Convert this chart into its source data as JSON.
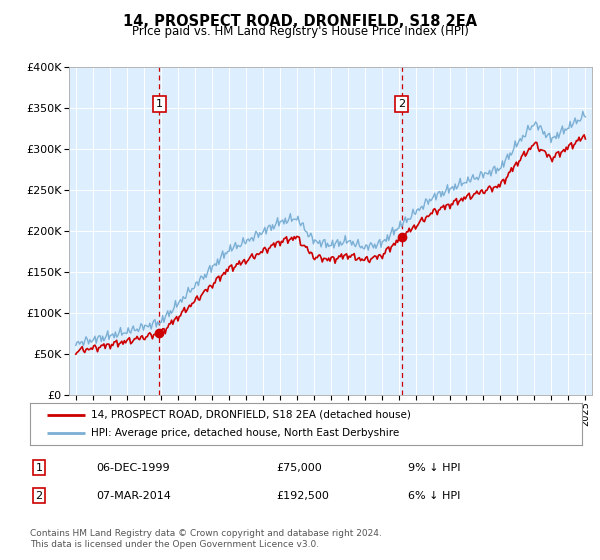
{
  "title": "14, PROSPECT ROAD, DRONFIELD, S18 2EA",
  "subtitle": "Price paid vs. HM Land Registry's House Price Index (HPI)",
  "legend_line1": "14, PROSPECT ROAD, DRONFIELD, S18 2EA (detached house)",
  "legend_line2": "HPI: Average price, detached house, North East Derbyshire",
  "footer": "Contains HM Land Registry data © Crown copyright and database right 2024.\nThis data is licensed under the Open Government Licence v3.0.",
  "sale1_date": "06-DEC-1999",
  "sale1_price": "£75,000",
  "sale1_hpi": "9% ↓ HPI",
  "sale2_date": "07-MAR-2014",
  "sale2_price": "£192,500",
  "sale2_hpi": "6% ↓ HPI",
  "sale1_year": 1999.92,
  "sale1_value": 75000,
  "sale2_year": 2014.18,
  "sale2_value": 192500,
  "hpi_color": "#7bafd4",
  "price_color": "#cc0000",
  "sale_marker_color": "#cc0000",
  "dashed_line_color": "#cc0000",
  "plot_bg_color": "#ddeeff",
  "ylim": [
    0,
    400000
  ],
  "yticks": [
    0,
    50000,
    100000,
    150000,
    200000,
    250000,
    300000,
    350000,
    400000
  ],
  "xlim_start": 1994.6,
  "xlim_end": 2025.4
}
